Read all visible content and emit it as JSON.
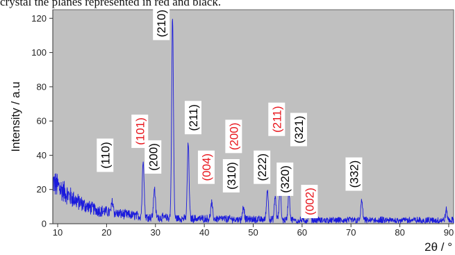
{
  "caption": "crystal the planes represented in red and black.",
  "chart_data": {
    "type": "line",
    "title": "",
    "xlabel": "2θ / °",
    "ylabel": "Intensity / a.u",
    "xlim": [
      9,
      91
    ],
    "ylim": [
      0,
      125
    ],
    "xticks": [
      10,
      20,
      30,
      40,
      50,
      60,
      70,
      80,
      90
    ],
    "yticks": [
      0,
      20,
      40,
      60,
      80,
      100,
      120
    ],
    "grid": false,
    "background": "#c0c0c0",
    "line_color": "#1a1adc",
    "series": [
      {
        "name": "",
        "baseline": [
          [
            9,
            24
          ],
          [
            10,
            22
          ],
          [
            12,
            17
          ],
          [
            14,
            13
          ],
          [
            16,
            10
          ],
          [
            18,
            8
          ],
          [
            20,
            7
          ],
          [
            22,
            6
          ],
          [
            25,
            5
          ],
          [
            28,
            4
          ],
          [
            32,
            3.5
          ],
          [
            36,
            3
          ],
          [
            40,
            3
          ],
          [
            50,
            2.5
          ],
          [
            60,
            2
          ],
          [
            70,
            2
          ],
          [
            80,
            2
          ],
          [
            90,
            2
          ],
          [
            91,
            2
          ]
        ],
        "peaks": [
          {
            "x": 21.2,
            "y": 13
          },
          {
            "x": 27.5,
            "y": 38
          },
          {
            "x": 29.8,
            "y": 21
          },
          {
            "x": 33.5,
            "y": 120
          },
          {
            "x": 36.7,
            "y": 47
          },
          {
            "x": 41.5,
            "y": 12
          },
          {
            "x": 48.0,
            "y": 10
          },
          {
            "x": 52.9,
            "y": 20
          },
          {
            "x": 54.5,
            "y": 16
          },
          {
            "x": 55.5,
            "y": 20
          },
          {
            "x": 57.3,
            "y": 19
          },
          {
            "x": 61.5,
            "y": 7
          },
          {
            "x": 72.2,
            "y": 14
          },
          {
            "x": 89.5,
            "y": 8
          }
        ]
      }
    ],
    "annotations": [
      {
        "text": "(110)",
        "x": 19.7,
        "y": 40,
        "color": "#000000"
      },
      {
        "text": "(101)",
        "x": 26.8,
        "y": 54,
        "color": "#e8141b"
      },
      {
        "text": "(200)",
        "x": 29.5,
        "y": 39,
        "color": "#000000"
      },
      {
        "text": "(210)",
        "x": 31.2,
        "y": 117,
        "color": "#000000"
      },
      {
        "text": "(211)",
        "x": 37.7,
        "y": 62,
        "color": "#000000"
      },
      {
        "text": "(004)",
        "x": 40.4,
        "y": 33,
        "color": "#e8141b"
      },
      {
        "text": "(200)",
        "x": 46.0,
        "y": 51,
        "color": "#e8141b"
      },
      {
        "text": "(310)",
        "x": 45.5,
        "y": 28,
        "color": "#000000"
      },
      {
        "text": "(222)",
        "x": 51.8,
        "y": 33,
        "color": "#000000"
      },
      {
        "text": "(211)",
        "x": 54.8,
        "y": 61,
        "color": "#e8141b"
      },
      {
        "text": "(320)",
        "x": 56.5,
        "y": 26,
        "color": "#000000"
      },
      {
        "text": "(321)",
        "x": 59.3,
        "y": 55,
        "color": "#000000"
      },
      {
        "text": "(002)",
        "x": 61.5,
        "y": 13,
        "color": "#e8141b"
      },
      {
        "text": "(332)",
        "x": 70.6,
        "y": 29,
        "color": "#000000"
      }
    ]
  }
}
